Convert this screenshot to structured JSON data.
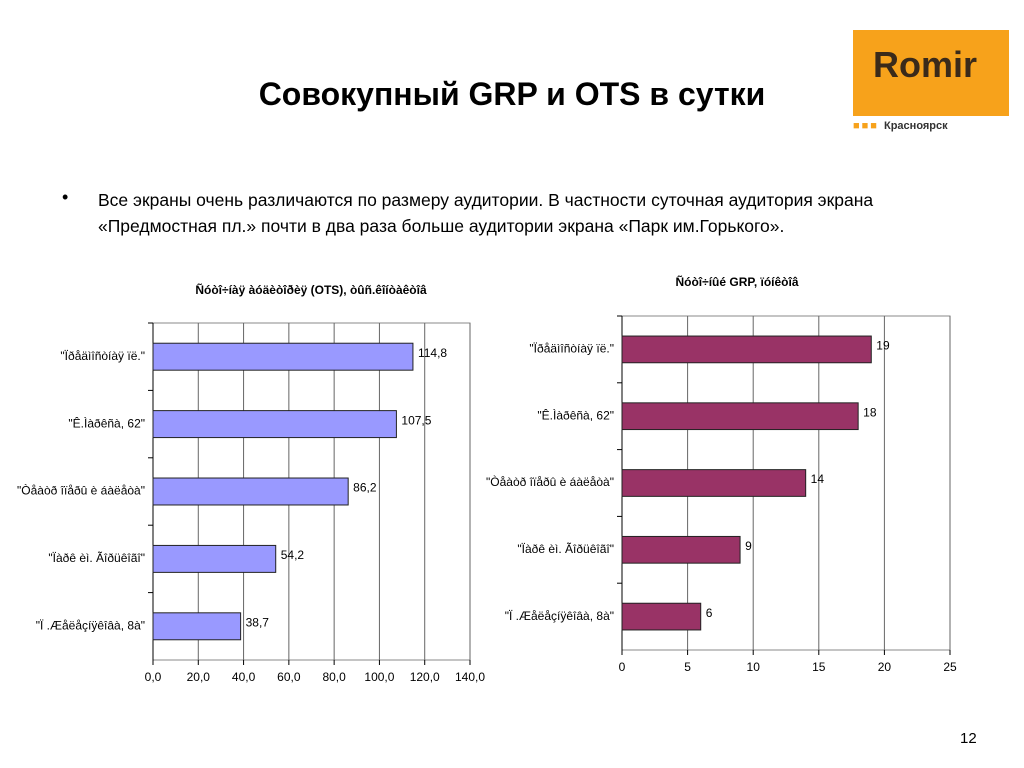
{
  "header": {
    "title": "Совокупный GRP и OTS в сутки"
  },
  "logo": {
    "name": "Romir",
    "city": "Красноярск"
  },
  "bullet": "Все экраны очень различаются по размеру аудитории. В частности суточная аудитория экрана «Предмостная пл.» почти в два раза больше аудитории экрана «Парк им.Горького».",
  "page_number": "12",
  "chart_data": [
    {
      "type": "bar",
      "orientation": "horizontal",
      "title": "Ñóòî÷íàÿ àóäèòîðèÿ (OTS), òûñ.êîíòàêòîâ",
      "categories": [
        "\"Ïðåäìîñòíàÿ ïë.\"",
        "\"Ê.Ìàðêñà, 62\"",
        "\"Òåàòð îïåðû è áàëåòà\"",
        "\"Ïàðê èì. Ãîðüêîãî\"",
        "\"Ï .Æåëåçíÿêîâà, 8à\""
      ],
      "values": [
        114.8,
        107.5,
        86.2,
        54.2,
        38.7
      ],
      "value_labels": [
        "114,8",
        "107,5",
        "86,2",
        "54,2",
        "38,7"
      ],
      "color": "#9999ff",
      "xlim": [
        0,
        140
      ],
      "xticks": [
        {
          "value": 0,
          "label": "0,0"
        },
        {
          "value": 20,
          "label": "20,0"
        },
        {
          "value": 40,
          "label": "40,0"
        },
        {
          "value": 60,
          "label": "60,0"
        },
        {
          "value": 80,
          "label": "80,0"
        },
        {
          "value": 100,
          "label": "100,0"
        },
        {
          "value": 120,
          "label": "120,0"
        },
        {
          "value": 140,
          "label": "140,0"
        }
      ],
      "grid": true
    },
    {
      "type": "bar",
      "orientation": "horizontal",
      "title": "Ñóòî÷íûé GRP, ïóíêòîâ",
      "categories": [
        "\"Ïðåäìîñòíàÿ ïë.\"",
        "\"Ê.Ìàðêñà, 62\"",
        "\"Òåàòð îïåðû è áàëåòà\"",
        "\"Ïàðê èì. Ãîðüêîãî\"",
        "\"Ï .Æåëåçíÿêîâà, 8à\""
      ],
      "values": [
        19,
        18,
        14,
        9,
        6
      ],
      "color": "#993366",
      "xlim": [
        0,
        25
      ],
      "xticks": [
        0,
        5,
        10,
        15,
        20,
        25
      ],
      "grid": true
    }
  ]
}
